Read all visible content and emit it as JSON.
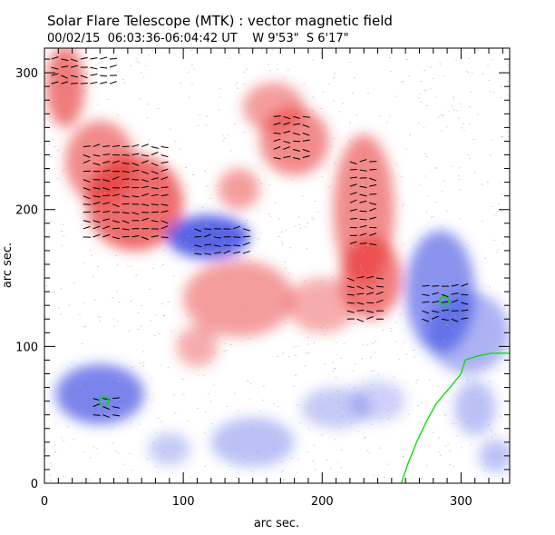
{
  "chart_data": {
    "type": "heatmap",
    "title": "Solar Flare Telescope (MTK) : vector magnetic field",
    "subtitle": "00/02/15  06:03:36-06:04:42 UT    W 9'53\"  S 6'17\"",
    "xlabel": "arc sec.",
    "ylabel": "arc sec.",
    "xlim": [
      0,
      335
    ],
    "ylim": [
      0,
      318
    ],
    "xticks": [
      "0",
      "100",
      "200",
      "300"
    ],
    "yticks": [
      "0",
      "100",
      "200",
      "300"
    ],
    "xtick_values": [
      0,
      100,
      200,
      300
    ],
    "ytick_values": [
      0,
      100,
      200,
      300
    ],
    "colors": {
      "positive": "#e83030",
      "negative": "#3040e0",
      "contour": "#00dd00",
      "vector": "#000000"
    },
    "positive_regions": [
      [
        15,
        290,
        14,
        30,
        0.8
      ],
      [
        65,
        205,
        35,
        35,
        0.9
      ],
      [
        40,
        235,
        25,
        30,
        0.7
      ],
      [
        180,
        250,
        25,
        25,
        0.7
      ],
      [
        230,
        200,
        22,
        55,
        0.7
      ],
      [
        235,
        150,
        22,
        30,
        0.8
      ],
      [
        140,
        135,
        40,
        28,
        0.6
      ],
      [
        200,
        130,
        25,
        20,
        0.5
      ],
      [
        165,
        275,
        22,
        18,
        0.6
      ],
      [
        140,
        215,
        15,
        15,
        0.6
      ],
      [
        110,
        100,
        15,
        15,
        0.5
      ]
    ],
    "negative_regions": [
      [
        118,
        180,
        30,
        16,
        1.0
      ],
      [
        40,
        65,
        32,
        22,
        0.8
      ],
      [
        285,
        140,
        25,
        45,
        0.7
      ],
      [
        305,
        110,
        30,
        30,
        0.5
      ],
      [
        310,
        55,
        15,
        20,
        0.4
      ],
      [
        150,
        30,
        30,
        18,
        0.4
      ],
      [
        325,
        20,
        12,
        12,
        0.4
      ],
      [
        210,
        55,
        25,
        15,
        0.35
      ],
      [
        90,
        25,
        15,
        12,
        0.35
      ],
      [
        240,
        60,
        20,
        15,
        0.3
      ]
    ],
    "vector_regions": [
      [
        28,
        88,
        180,
        250
      ],
      [
        5,
        50,
        292,
        315
      ],
      [
        108,
        145,
        168,
        190
      ],
      [
        218,
        245,
        120,
        150
      ],
      [
        165,
        190,
        238,
        270
      ],
      [
        272,
        300,
        120,
        145
      ],
      [
        35,
        52,
        50,
        66
      ],
      [
        220,
        240,
        175,
        235
      ]
    ],
    "contour_line": [
      [
        257,
        0
      ],
      [
        262,
        15
      ],
      [
        268,
        30
      ],
      [
        275,
        45
      ],
      [
        282,
        58
      ],
      [
        292,
        70
      ],
      [
        300,
        80
      ],
      [
        303,
        90
      ],
      [
        312,
        93
      ],
      [
        322,
        95
      ],
      [
        335,
        95
      ]
    ],
    "contour_circles": [
      [
        43,
        60
      ],
      [
        288,
        133
      ]
    ]
  }
}
